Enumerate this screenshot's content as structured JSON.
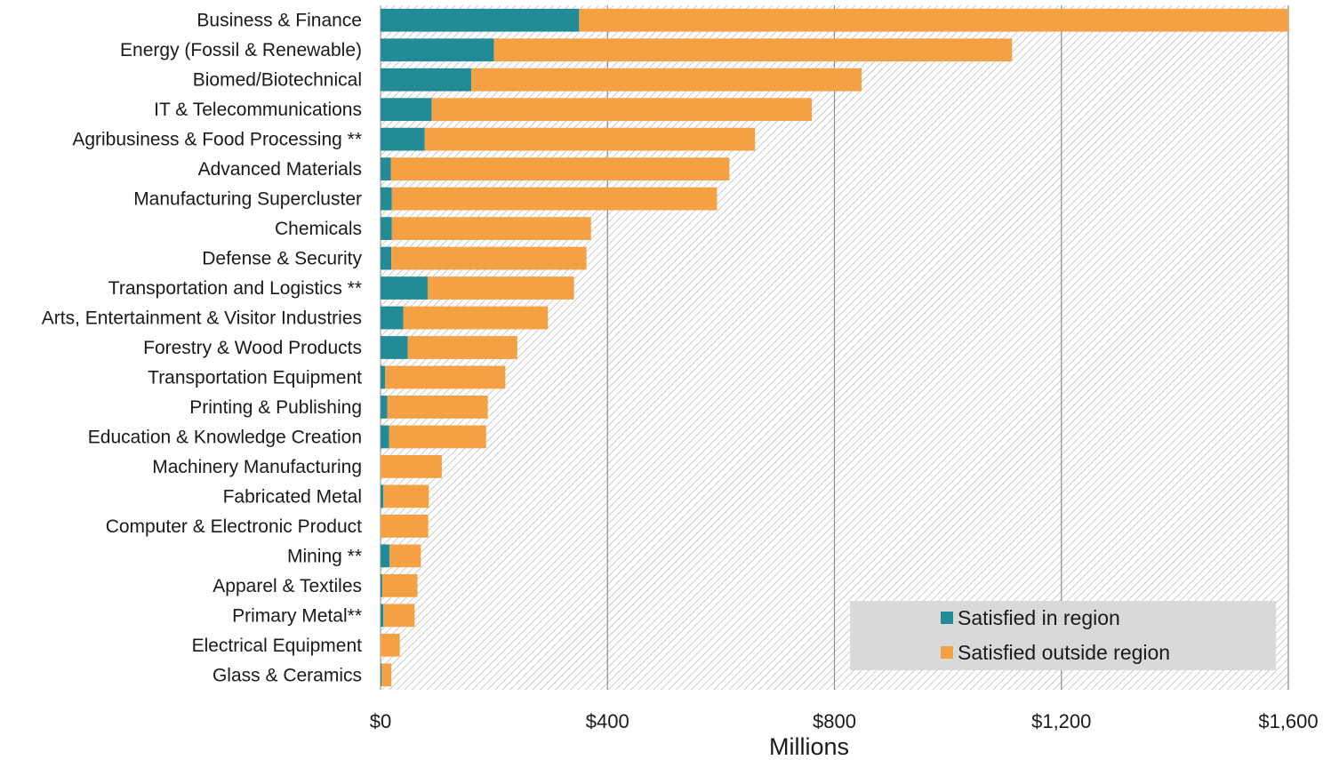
{
  "chart_data": {
    "type": "bar",
    "orientation": "horizontal",
    "stacked": true,
    "title": "",
    "xlabel": "Millions",
    "ylabel": "",
    "xlim": [
      0,
      1600
    ],
    "tick_values": [
      0,
      400,
      800,
      1200,
      1600
    ],
    "tick_labels": [
      "$0",
      "$400",
      "$800",
      "$1,200",
      "$1,600"
    ],
    "grid": "vertical",
    "legend_position": "bottom-right",
    "categories": [
      "Business & Finance",
      "Energy (Fossil & Renewable)",
      "Biomed/Biotechnical",
      "IT & Telecommunications",
      "Agribusiness & Food Processing **",
      "Advanced Materials",
      "Manufacturing Supercluster",
      "Chemicals",
      "Defense & Security",
      "Transportation and Logistics **",
      "Arts, Entertainment & Visitor Industries",
      "Forestry & Wood Products",
      "Transportation Equipment",
      "Printing & Publishing",
      "Education & Knowledge Creation",
      "Machinery Manufacturing",
      "Fabricated Metal",
      "Computer & Electronic Product",
      "Mining **",
      "Apparel & Textiles",
      "Primary Metal**",
      "Electrical Equipment",
      "Glass & Ceramics"
    ],
    "series": [
      {
        "name": "Satisfied in region",
        "color": "#238b96",
        "values": [
          350,
          200,
          160,
          90,
          78,
          18,
          20,
          20,
          19,
          83,
          40,
          48,
          8,
          12,
          15,
          0,
          5,
          0,
          16,
          3,
          5,
          0,
          2
        ]
      },
      {
        "name": "Satisfied outside region",
        "color": "#f4a045",
        "values": [
          1250,
          913,
          688,
          670,
          582,
          597,
          573,
          351,
          344,
          258,
          255,
          193,
          212,
          177,
          171,
          108,
          80,
          84,
          55,
          62,
          55,
          34,
          17
        ]
      }
    ]
  },
  "colors": {
    "plot_hatch_bg": "#ffffff",
    "plot_hatch_line": "#bdbdbd",
    "gridline": "#8c8c8c",
    "legend_bg": "#d9d9d9"
  }
}
